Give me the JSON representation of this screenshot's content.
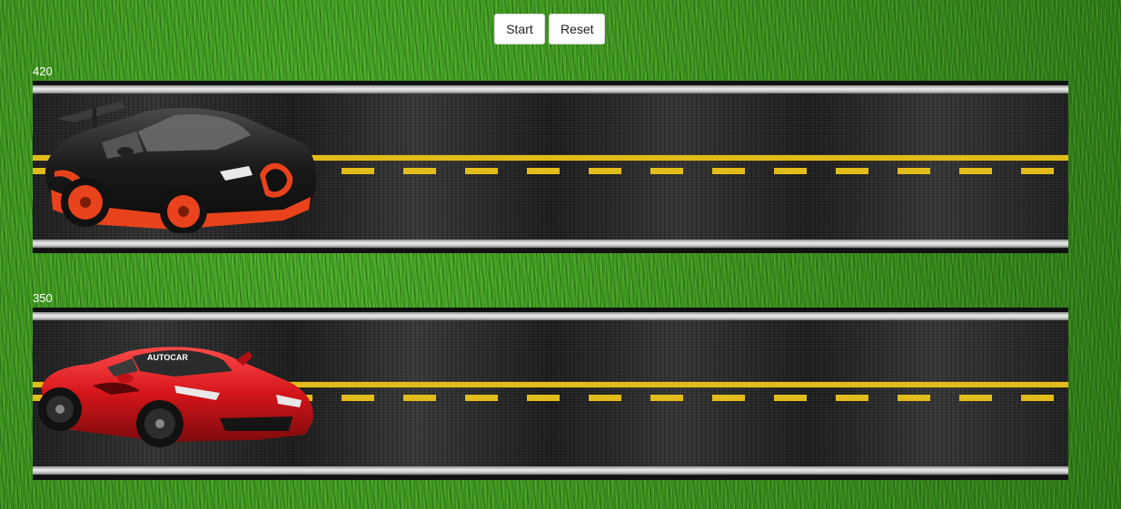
{
  "controls": {
    "start_label": "Start",
    "reset_label": "Reset"
  },
  "lanes": [
    {
      "label": "420",
      "car": "black-orange-sports-car",
      "color": "#1b1b1b",
      "accent": "#e8431c"
    },
    {
      "label": "350",
      "car": "red-sports-car",
      "color": "#d3151a",
      "accent": "#111111",
      "decal": "AUTOCAR"
    }
  ],
  "colors": {
    "grass": "#3f9a22",
    "asphalt": "#262626",
    "lane_yellow": "#e2bc1a"
  }
}
